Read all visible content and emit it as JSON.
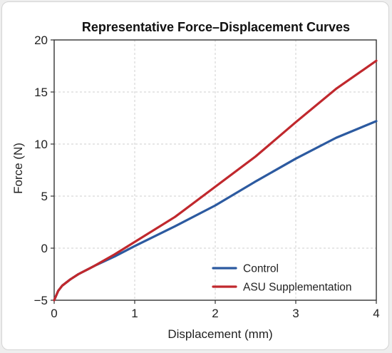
{
  "chart_data": {
    "type": "line",
    "title": "Representative Force–Displacement Curves",
    "xlabel": "Displacement (mm)",
    "ylabel": "Force (N)",
    "xlim": [
      0,
      4
    ],
    "ylim": [
      -5,
      20
    ],
    "xticks": [
      0,
      1,
      2,
      3,
      4
    ],
    "yticks": [
      -5,
      0,
      5,
      10,
      15,
      20
    ],
    "grid": true,
    "legend_position": "bottom-right",
    "series": [
      {
        "name": "Control",
        "color": "#2c5aa0",
        "x": [
          0,
          0.05,
          0.1,
          0.2,
          0.3,
          0.4,
          0.5,
          0.75,
          1.0,
          1.5,
          2.0,
          2.5,
          3.0,
          3.5,
          4.0
        ],
        "y": [
          -5.0,
          -4.1,
          -3.6,
          -3.0,
          -2.5,
          -2.1,
          -1.7,
          -0.8,
          0.2,
          2.1,
          4.1,
          6.4,
          8.6,
          10.6,
          12.2
        ]
      },
      {
        "name": "ASU Supplementation",
        "color": "#c0282d",
        "x": [
          0,
          0.05,
          0.1,
          0.2,
          0.3,
          0.4,
          0.5,
          0.75,
          1.0,
          1.5,
          2.0,
          2.5,
          3.0,
          3.5,
          4.0
        ],
        "y": [
          -5.0,
          -4.1,
          -3.6,
          -3.0,
          -2.5,
          -2.1,
          -1.7,
          -0.6,
          0.6,
          3.0,
          5.9,
          8.8,
          12.1,
          15.3,
          18.0
        ]
      }
    ]
  }
}
